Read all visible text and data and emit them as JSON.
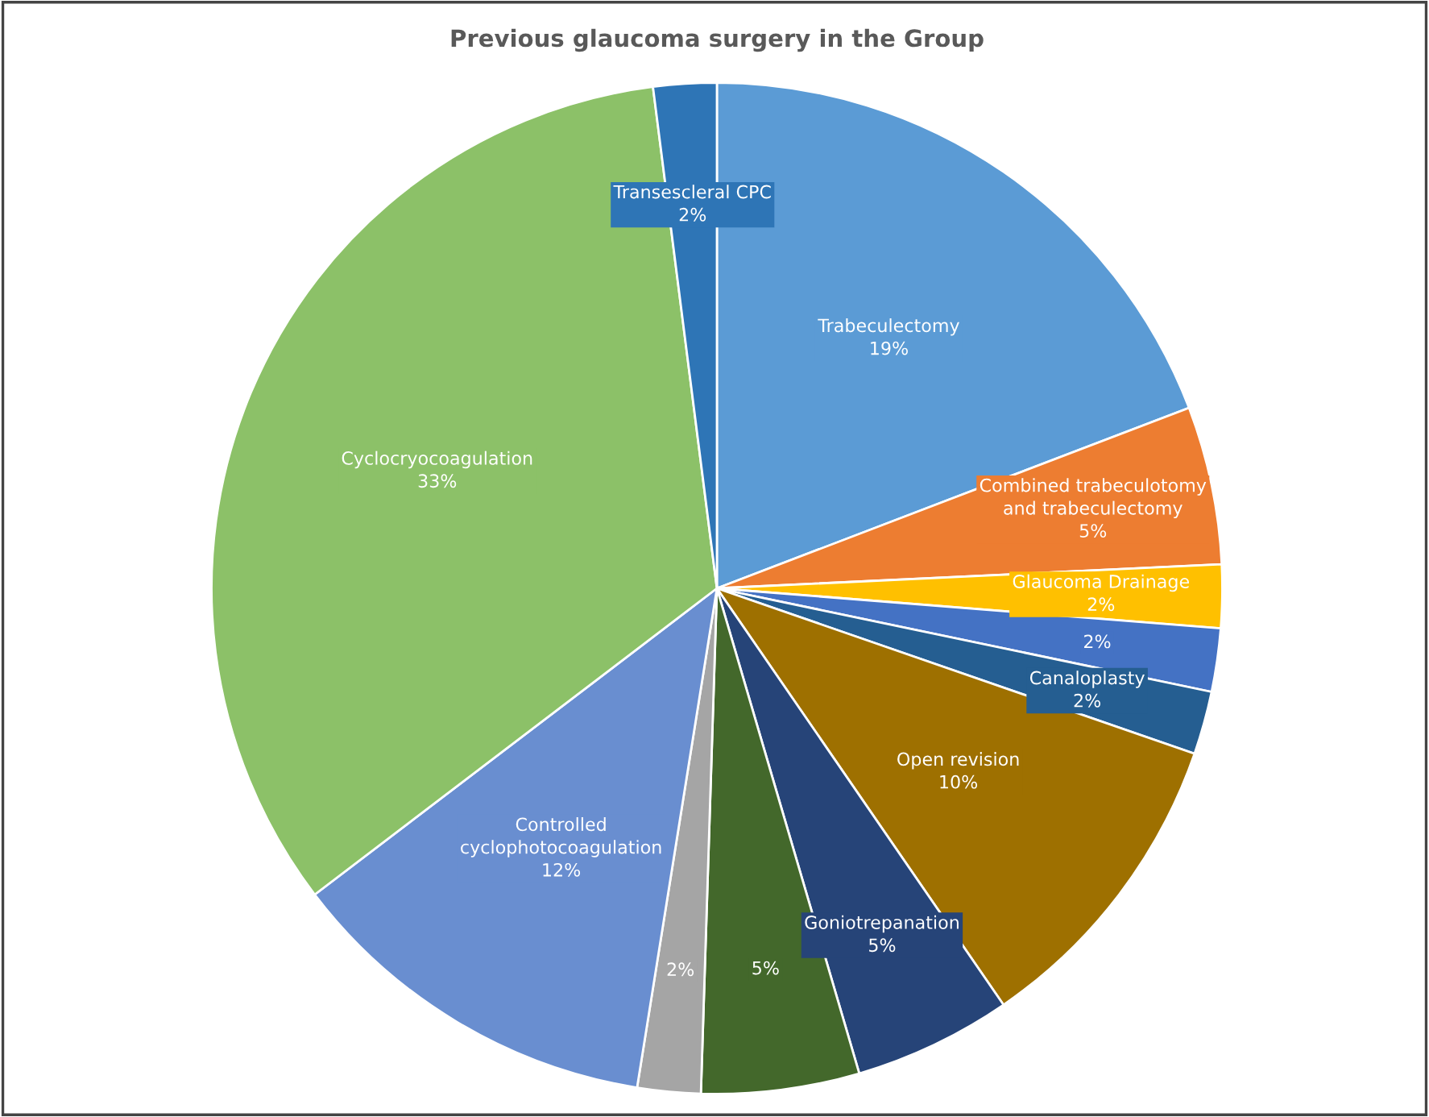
{
  "chart_data": {
    "type": "pie",
    "title": "Previous glaucoma surgery in the Group",
    "categories": [
      "Trabeculectomy",
      "Combined trabeculotomy\nand trabeculectomy",
      "Glaucoma Drainage",
      null,
      "Canaloplasty",
      "Open revision",
      "Goniotrepanation",
      null,
      null,
      "Controlled\ncyclophotocoagulation",
      "Cyclocryocoagulation",
      "Transescleral CPC"
    ],
    "values": [
      19,
      5,
      2,
      2,
      2,
      10,
      5,
      5,
      2,
      12,
      33,
      2
    ],
    "value_labels": [
      "19%",
      "5%",
      "2%",
      "2%",
      "2%",
      "10%",
      "5%",
      "5%",
      "2%",
      "12%",
      "33%",
      "2%"
    ],
    "colors": [
      "#5b9bd5",
      "#ed7d31",
      "#ffc000",
      "#4472c4",
      "#255e91",
      "#9e7000",
      "#264478",
      "#43682b",
      "#a5a5a5",
      "#698ed0",
      "#8cc168",
      "#2e75b6"
    ]
  }
}
